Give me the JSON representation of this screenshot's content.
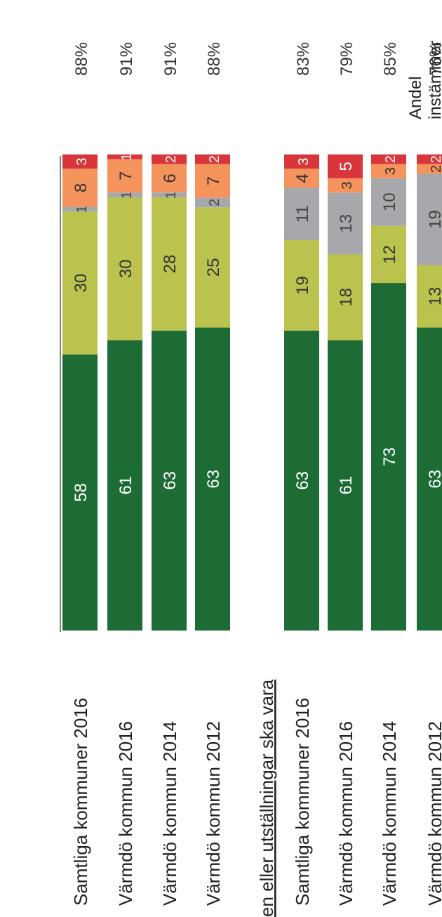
{
  "chart_data": {
    "type": "bar",
    "orientation": "horizontal-stacked-percent",
    "header": {
      "line1": "Andel",
      "line2": "instämmer"
    },
    "sections": [
      {
        "title": "",
        "rows": [
          {
            "label": "Samtliga kommuner 2016",
            "share": "88%",
            "values": [
              58,
              30,
              1,
              8,
              3
            ]
          },
          {
            "label": "Värmdö kommun 2016",
            "share": "91%",
            "values": [
              61,
              30,
              1,
              7,
              1
            ]
          },
          {
            "label": "Värmdö kommun 2014",
            "share": "91%",
            "values": [
              63,
              28,
              1,
              6,
              2
            ]
          },
          {
            "label": "Värmdö kommun 2012",
            "share": "88%",
            "values": [
              63,
              25,
              2,
              7,
              2
            ]
          }
        ]
      },
      {
        "title": "en eller utställningar ska vara",
        "rows": [
          {
            "label": "Samtliga kommuner 2016",
            "share": "83%",
            "values": [
              63,
              19,
              11,
              4,
              3
            ]
          },
          {
            "label": "Värmdö kommun 2016",
            "share": "79%",
            "values": [
              61,
              18,
              13,
              3,
              5
            ]
          },
          {
            "label": "Värmdö kommun 2014",
            "share": "85%",
            "values": [
              73,
              12,
              10,
              3,
              2
            ]
          },
          {
            "label": "Värmdö kommun 2012",
            "share": "76%",
            "values": [
              63,
              13,
              19,
              2,
              2
            ]
          }
        ]
      }
    ],
    "series_colors": [
      "#1d6b35",
      "#bcc24e",
      "#a7a8ab",
      "#f5935c",
      "#d9363c"
    ],
    "xlim": [
      0,
      100
    ]
  }
}
